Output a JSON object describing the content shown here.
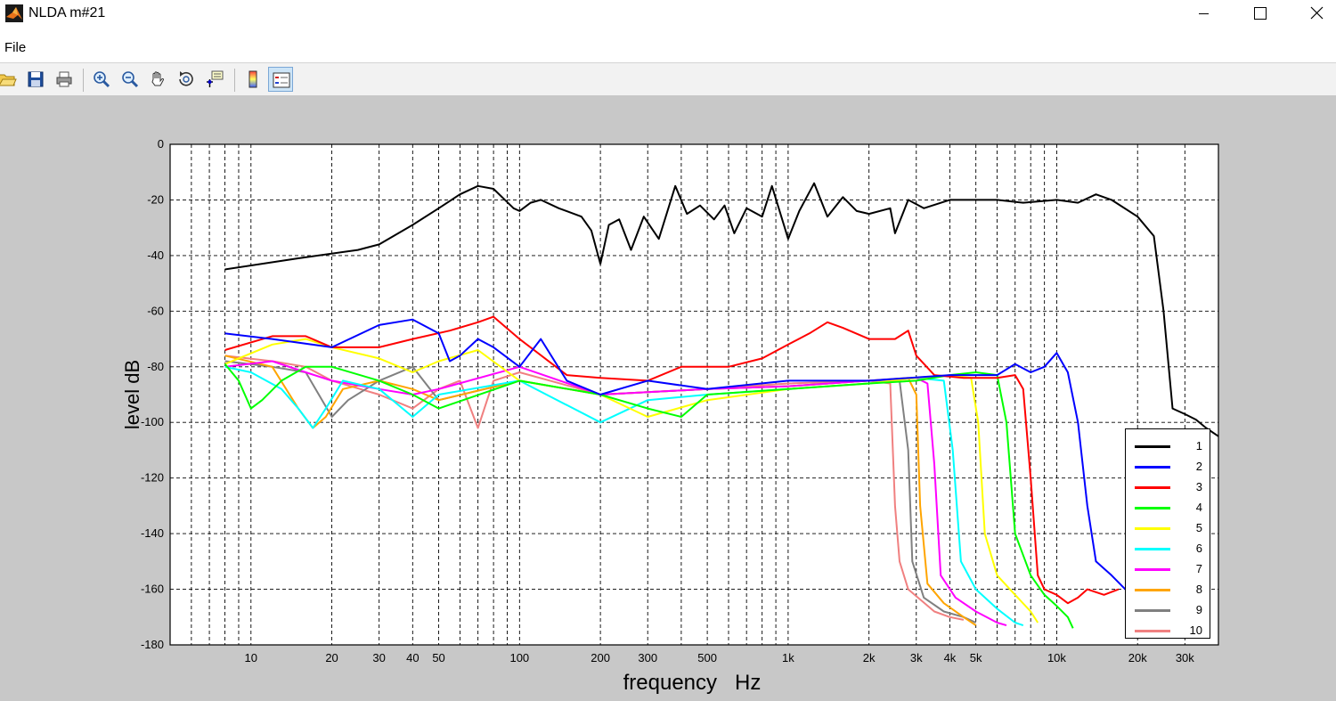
{
  "window": {
    "title": "NLDA m#21"
  },
  "menu": {
    "items": [
      "File"
    ]
  },
  "toolbar": {
    "buttons": [
      {
        "name": "open-file-button",
        "icon": "folder-open-icon"
      },
      {
        "name": "save-button",
        "icon": "floppy-disk-icon"
      },
      {
        "name": "print-button",
        "icon": "printer-icon"
      },
      {
        "name": "zoom-in-button",
        "icon": "zoom-in-icon"
      },
      {
        "name": "zoom-out-button",
        "icon": "zoom-out-icon"
      },
      {
        "name": "pan-button",
        "icon": "hand-icon"
      },
      {
        "name": "rotate-3d-button",
        "icon": "rotate-icon"
      },
      {
        "name": "data-cursor-button",
        "icon": "data-cursor-icon"
      },
      {
        "name": "colorbar-button",
        "icon": "colorbar-icon"
      },
      {
        "name": "legend-button",
        "icon": "legend-icon"
      }
    ]
  },
  "chart_data": {
    "type": "line",
    "xlabel": "frequency   Hz",
    "ylabel": "level dB",
    "xscale": "log",
    "xlim": [
      5,
      40000
    ],
    "ylim": [
      -180,
      0
    ],
    "grid": true,
    "legend_position": "bottom-right",
    "xticks": [
      10,
      20,
      30,
      40,
      50,
      100,
      200,
      300,
      500,
      1000,
      2000,
      3000,
      4000,
      5000,
      10000,
      20000,
      30000
    ],
    "xtick_labels": [
      "10",
      "20",
      "30",
      "40",
      "50",
      "100",
      "200",
      "300",
      "500",
      "1k",
      "2k",
      "3k",
      "4k",
      "5k",
      "10k",
      "20k",
      "30k"
    ],
    "yticks": [
      0,
      -20,
      -40,
      -60,
      -80,
      -100,
      -120,
      -140,
      -160,
      -180
    ],
    "ytick_labels": [
      "0",
      "-20",
      "-40",
      "-60",
      "-80",
      "-100",
      "-120",
      "-140",
      "-160",
      "-180"
    ],
    "series": [
      {
        "name": "1",
        "color": "#000000",
        "points": [
          [
            8,
            -45
          ],
          [
            15,
            -41
          ],
          [
            25,
            -38
          ],
          [
            30,
            -36
          ],
          [
            40,
            -29
          ],
          [
            50,
            -23
          ],
          [
            60,
            -18
          ],
          [
            70,
            -15
          ],
          [
            80,
            -16
          ],
          [
            95,
            -23
          ],
          [
            100,
            -24
          ],
          [
            110,
            -21
          ],
          [
            120,
            -20
          ],
          [
            140,
            -23
          ],
          [
            170,
            -26
          ],
          [
            185,
            -31
          ],
          [
            200,
            -43
          ],
          [
            215,
            -29
          ],
          [
            235,
            -27
          ],
          [
            260,
            -38
          ],
          [
            290,
            -26
          ],
          [
            330,
            -34
          ],
          [
            380,
            -15
          ],
          [
            420,
            -25
          ],
          [
            470,
            -22
          ],
          [
            530,
            -27
          ],
          [
            580,
            -22
          ],
          [
            630,
            -32
          ],
          [
            700,
            -23
          ],
          [
            800,
            -26
          ],
          [
            870,
            -15
          ],
          [
            950,
            -27
          ],
          [
            1000,
            -34
          ],
          [
            1100,
            -24
          ],
          [
            1250,
            -14
          ],
          [
            1400,
            -26
          ],
          [
            1600,
            -19
          ],
          [
            1800,
            -24
          ],
          [
            2000,
            -25
          ],
          [
            2400,
            -23
          ],
          [
            2500,
            -32
          ],
          [
            2800,
            -20
          ],
          [
            3200,
            -23
          ],
          [
            4000,
            -20
          ],
          [
            6000,
            -20
          ],
          [
            7500,
            -21
          ],
          [
            10000,
            -20
          ],
          [
            12000,
            -21
          ],
          [
            14000,
            -18
          ],
          [
            16000,
            -20
          ],
          [
            20000,
            -26
          ],
          [
            23000,
            -33
          ],
          [
            25000,
            -60
          ],
          [
            27000,
            -95
          ],
          [
            30000,
            -97
          ],
          [
            33000,
            -99
          ],
          [
            36000,
            -102
          ],
          [
            40000,
            -105
          ]
        ]
      },
      {
        "name": "2",
        "color": "#0000ff",
        "points": [
          [
            8,
            -68
          ],
          [
            12,
            -70
          ],
          [
            20,
            -73
          ],
          [
            30,
            -65
          ],
          [
            40,
            -63
          ],
          [
            50,
            -68
          ],
          [
            55,
            -78
          ],
          [
            60,
            -76
          ],
          [
            70,
            -70
          ],
          [
            80,
            -73
          ],
          [
            100,
            -80
          ],
          [
            120,
            -70
          ],
          [
            150,
            -85
          ],
          [
            200,
            -90
          ],
          [
            300,
            -85
          ],
          [
            500,
            -88
          ],
          [
            1000,
            -85
          ],
          [
            2000,
            -85
          ],
          [
            4000,
            -83
          ],
          [
            6000,
            -83
          ],
          [
            7000,
            -79
          ],
          [
            8000,
            -82
          ],
          [
            9000,
            -80
          ],
          [
            10000,
            -75
          ],
          [
            11000,
            -82
          ],
          [
            12000,
            -100
          ],
          [
            13000,
            -130
          ],
          [
            14000,
            -150
          ],
          [
            16000,
            -155
          ],
          [
            18000,
            -160
          ],
          [
            20000,
            -158
          ]
        ]
      },
      {
        "name": "3",
        "color": "#ff0000",
        "points": [
          [
            8,
            -74
          ],
          [
            12,
            -69
          ],
          [
            16,
            -69
          ],
          [
            20,
            -73
          ],
          [
            30,
            -73
          ],
          [
            40,
            -70
          ],
          [
            55,
            -67
          ],
          [
            70,
            -64
          ],
          [
            80,
            -62
          ],
          [
            100,
            -70
          ],
          [
            150,
            -83
          ],
          [
            200,
            -84
          ],
          [
            300,
            -85
          ],
          [
            400,
            -80
          ],
          [
            600,
            -80
          ],
          [
            800,
            -77
          ],
          [
            1000,
            -72
          ],
          [
            1200,
            -68
          ],
          [
            1400,
            -64
          ],
          [
            1600,
            -66
          ],
          [
            2000,
            -70
          ],
          [
            2500,
            -70
          ],
          [
            2800,
            -67
          ],
          [
            3000,
            -76
          ],
          [
            3500,
            -83
          ],
          [
            4500,
            -84
          ],
          [
            6000,
            -84
          ],
          [
            7000,
            -83
          ],
          [
            7500,
            -88
          ],
          [
            8000,
            -120
          ],
          [
            8500,
            -155
          ],
          [
            9000,
            -160
          ],
          [
            10000,
            -162
          ],
          [
            11000,
            -165
          ],
          [
            12000,
            -163
          ],
          [
            13000,
            -160
          ],
          [
            15000,
            -162
          ],
          [
            17000,
            -160
          ]
        ]
      },
      {
        "name": "4",
        "color": "#00ff00",
        "points": [
          [
            8,
            -79
          ],
          [
            9,
            -85
          ],
          [
            10,
            -95
          ],
          [
            11,
            -92
          ],
          [
            13,
            -85
          ],
          [
            16,
            -80
          ],
          [
            20,
            -80
          ],
          [
            30,
            -85
          ],
          [
            40,
            -90
          ],
          [
            50,
            -95
          ],
          [
            100,
            -85
          ],
          [
            200,
            -90
          ],
          [
            300,
            -95
          ],
          [
            400,
            -98
          ],
          [
            500,
            -90
          ],
          [
            1000,
            -88
          ],
          [
            2000,
            -86
          ],
          [
            3000,
            -85
          ],
          [
            4000,
            -83
          ],
          [
            5000,
            -82
          ],
          [
            6000,
            -83
          ],
          [
            6500,
            -100
          ],
          [
            7000,
            -140
          ],
          [
            8000,
            -155
          ],
          [
            9000,
            -162
          ],
          [
            10000,
            -166
          ],
          [
            11000,
            -170
          ],
          [
            11500,
            -174
          ]
        ]
      },
      {
        "name": "5",
        "color": "#ffff00",
        "points": [
          [
            8,
            -79
          ],
          [
            12,
            -72
          ],
          [
            16,
            -70
          ],
          [
            20,
            -73
          ],
          [
            30,
            -77
          ],
          [
            40,
            -82
          ],
          [
            50,
            -78
          ],
          [
            70,
            -74
          ],
          [
            100,
            -85
          ],
          [
            200,
            -90
          ],
          [
            300,
            -98
          ],
          [
            500,
            -92
          ],
          [
            1000,
            -88
          ],
          [
            2000,
            -86
          ],
          [
            3000,
            -84
          ],
          [
            4000,
            -83
          ],
          [
            4800,
            -84
          ],
          [
            5100,
            -100
          ],
          [
            5400,
            -140
          ],
          [
            6000,
            -155
          ],
          [
            7000,
            -162
          ],
          [
            8000,
            -168
          ],
          [
            8500,
            -172
          ]
        ]
      },
      {
        "name": "6",
        "color": "#00ffff",
        "points": [
          [
            8,
            -80
          ],
          [
            10,
            -82
          ],
          [
            13,
            -88
          ],
          [
            15,
            -95
          ],
          [
            17,
            -102
          ],
          [
            19,
            -95
          ],
          [
            22,
            -85
          ],
          [
            30,
            -88
          ],
          [
            40,
            -98
          ],
          [
            50,
            -90
          ],
          [
            100,
            -85
          ],
          [
            200,
            -100
          ],
          [
            300,
            -92
          ],
          [
            500,
            -90
          ],
          [
            1000,
            -88
          ],
          [
            2000,
            -86
          ],
          [
            3000,
            -84
          ],
          [
            3800,
            -85
          ],
          [
            4100,
            -110
          ],
          [
            4400,
            -150
          ],
          [
            5000,
            -160
          ],
          [
            6000,
            -167
          ],
          [
            7000,
            -172
          ],
          [
            7500,
            -173
          ]
        ]
      },
      {
        "name": "7",
        "color": "#ff00ff",
        "points": [
          [
            8,
            -80
          ],
          [
            12,
            -78
          ],
          [
            16,
            -82
          ],
          [
            20,
            -85
          ],
          [
            30,
            -88
          ],
          [
            40,
            -90
          ],
          [
            50,
            -88
          ],
          [
            100,
            -80
          ],
          [
            200,
            -90
          ],
          [
            500,
            -88
          ],
          [
            1000,
            -87
          ],
          [
            2000,
            -85
          ],
          [
            3000,
            -84
          ],
          [
            3300,
            -86
          ],
          [
            3500,
            -115
          ],
          [
            3700,
            -155
          ],
          [
            4200,
            -163
          ],
          [
            5000,
            -168
          ],
          [
            6000,
            -172
          ],
          [
            6500,
            -173
          ]
        ]
      },
      {
        "name": "8",
        "color": "#ffa500",
        "points": [
          [
            8,
            -76
          ],
          [
            12,
            -80
          ],
          [
            15,
            -95
          ],
          [
            17,
            -102
          ],
          [
            19,
            -98
          ],
          [
            22,
            -88
          ],
          [
            30,
            -85
          ],
          [
            40,
            -88
          ],
          [
            50,
            -92
          ],
          [
            100,
            -85
          ],
          [
            200,
            -90
          ],
          [
            500,
            -88
          ],
          [
            1000,
            -87
          ],
          [
            2000,
            -85
          ],
          [
            2800,
            -84
          ],
          [
            3000,
            -90
          ],
          [
            3100,
            -130
          ],
          [
            3300,
            -158
          ],
          [
            3800,
            -165
          ],
          [
            4500,
            -170
          ],
          [
            5000,
            -173
          ]
        ]
      },
      {
        "name": "9",
        "color": "#808080",
        "points": [
          [
            8,
            -78
          ],
          [
            12,
            -80
          ],
          [
            16,
            -82
          ],
          [
            20,
            -98
          ],
          [
            23,
            -92
          ],
          [
            30,
            -85
          ],
          [
            40,
            -80
          ],
          [
            50,
            -92
          ],
          [
            100,
            -85
          ],
          [
            200,
            -90
          ],
          [
            500,
            -88
          ],
          [
            1000,
            -87
          ],
          [
            2000,
            -85
          ],
          [
            2600,
            -85
          ],
          [
            2800,
            -110
          ],
          [
            2900,
            -150
          ],
          [
            3200,
            -163
          ],
          [
            3800,
            -168
          ],
          [
            4500,
            -170
          ],
          [
            5000,
            -172
          ]
        ]
      },
      {
        "name": "10",
        "color": "#f08080",
        "points": [
          [
            8,
            -76
          ],
          [
            12,
            -78
          ],
          [
            16,
            -80
          ],
          [
            20,
            -85
          ],
          [
            30,
            -90
          ],
          [
            40,
            -95
          ],
          [
            50,
            -88
          ],
          [
            60,
            -85
          ],
          [
            70,
            -102
          ],
          [
            80,
            -85
          ],
          [
            100,
            -82
          ],
          [
            200,
            -90
          ],
          [
            500,
            -88
          ],
          [
            1000,
            -86
          ],
          [
            2000,
            -85
          ],
          [
            2400,
            -86
          ],
          [
            2500,
            -130
          ],
          [
            2600,
            -150
          ],
          [
            2800,
            -160
          ],
          [
            3500,
            -168
          ],
          [
            4000,
            -170
          ],
          [
            4500,
            -171
          ]
        ]
      }
    ]
  }
}
